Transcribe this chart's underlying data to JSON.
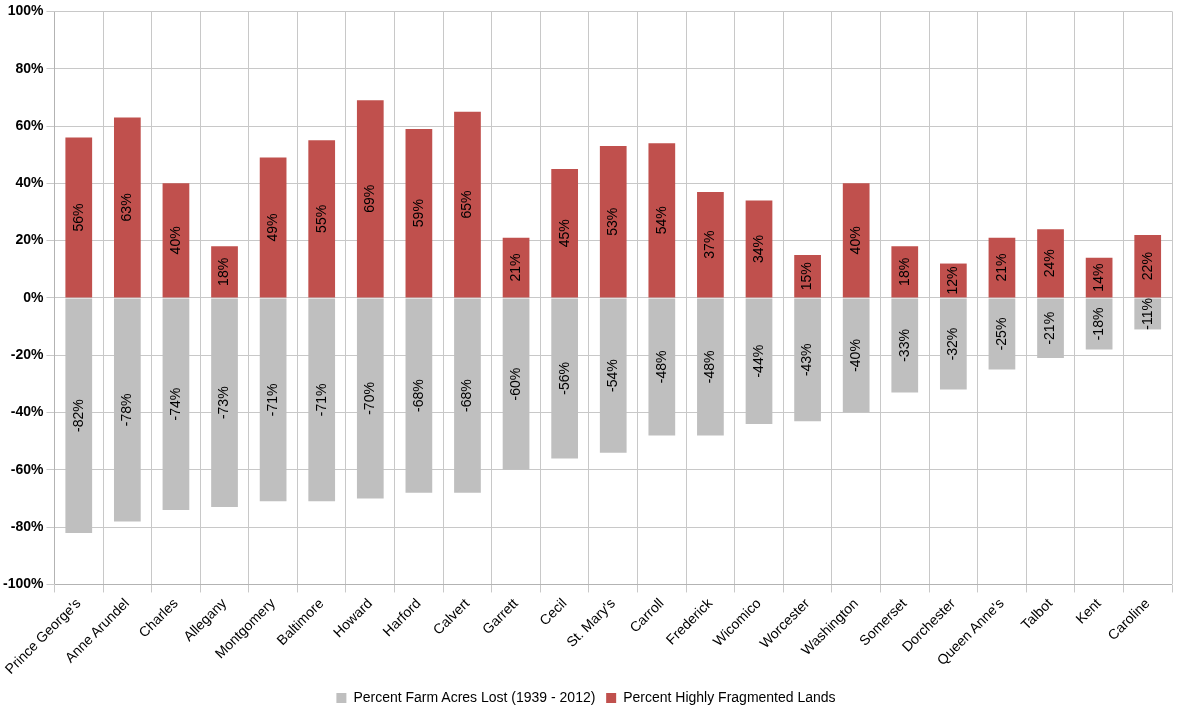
{
  "chart_data": {
    "type": "bar",
    "stacked": true,
    "categories": [
      "Prince George's",
      "Anne Arundel",
      "Charles",
      "Allegany",
      "Montgomery",
      "Baltimore",
      "Howard",
      "Harford",
      "Calvert",
      "Garrett",
      "Cecil",
      "St. Mary's",
      "Carroll",
      "Frederick",
      "Wicomico",
      "Worcester",
      "Washington",
      "Somerset",
      "Dorchester",
      "Queen Anne's",
      "Talbot",
      "Kent",
      "Caroline"
    ],
    "series": [
      {
        "name": "Percent Farm Acres Lost (1939 - 2012)",
        "color": "#bfbfbf",
        "values": [
          -82,
          -78,
          -74,
          -73,
          -71,
          -71,
          -70,
          -68,
          -68,
          -60,
          -56,
          -54,
          -48,
          -48,
          -44,
          -43,
          -40,
          -33,
          -32,
          -25,
          -21,
          -18,
          -11
        ],
        "value_labels": [
          "-82%",
          "-78%",
          "-74%",
          "-73%",
          "-71%",
          "-71%",
          "-70%",
          "-68%",
          "-68%",
          "-60%",
          "-56%",
          "-54%",
          "-48%",
          "-48%",
          "-44%",
          "-43%",
          "-40%",
          "-33%",
          "-32%",
          "-25%",
          "-21%",
          "-18%",
          "-11%"
        ]
      },
      {
        "name": "Percent Highly Fragmented Lands",
        "color": "#c0504d",
        "values": [
          56,
          63,
          40,
          18,
          49,
          55,
          69,
          59,
          65,
          21,
          45,
          53,
          54,
          37,
          34,
          15,
          40,
          18,
          12,
          21,
          24,
          14,
          22
        ],
        "value_labels": [
          "56%",
          "63%",
          "40%",
          "18%",
          "49%",
          "55%",
          "69%",
          "59%",
          "65%",
          "21%",
          "45%",
          "53%",
          "54%",
          "37%",
          "34%",
          "15%",
          "40%",
          "18%",
          "12%",
          "21%",
          "24%",
          "14%",
          "22%"
        ]
      }
    ],
    "ylim": [
      -100,
      100
    ],
    "yticks": [
      {
        "value": -100,
        "label": "-100%"
      },
      {
        "value": -80,
        "label": "-80%"
      },
      {
        "value": -60,
        "label": "-60%"
      },
      {
        "value": -40,
        "label": "-40%"
      },
      {
        "value": -20,
        "label": "-20%"
      },
      {
        "value": 0,
        "label": "0%"
      },
      {
        "value": 20,
        "label": "20%"
      },
      {
        "value": 40,
        "label": "40%"
      },
      {
        "value": 60,
        "label": "60%"
      },
      {
        "value": 80,
        "label": "80%"
      },
      {
        "value": 100,
        "label": "100%"
      }
    ],
    "grid": true,
    "legend": "bottom"
  }
}
